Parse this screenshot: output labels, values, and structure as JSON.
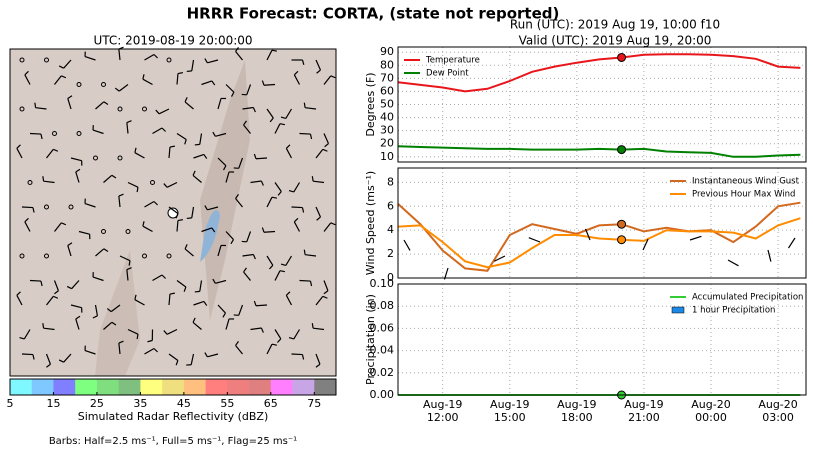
{
  "title": "HRRR Forecast: CORTA, (state not reported)",
  "map": {
    "title": "UTC: 2019-08-19 20:00:00",
    "colorbar": {
      "label": "Simulated Radar Reflectivity (dBZ)",
      "lim": [
        5,
        80
      ],
      "ticks": [
        5,
        15,
        25,
        35,
        45,
        55,
        65,
        75
      ],
      "colors": [
        "#7ff8ff",
        "#7fc8ff",
        "#7f7fff",
        "#7fff7f",
        "#7fdf7f",
        "#7fbf7f",
        "#ffff7f",
        "#efdf7f",
        "#ffbf7f",
        "#ff7f7f",
        "#ef7f7f",
        "#df7f7f",
        "#ff7fff",
        "#c8a6e6",
        "#808080"
      ]
    },
    "note": "Barbs: Half=2.5 ms⁻¹, Full=5 ms⁻¹, Flag=25 ms⁻¹"
  },
  "run": "Run (UTC): 2019 Aug 19, 10:00 f10",
  "valid": "Valid (UTC): 2019 Aug 19, 20:00",
  "chart_data": [
    {
      "type": "line",
      "ylabel": "Degrees (F)",
      "legend": "upper left",
      "grid": true,
      "highlight_x": "Aug-19 20:00",
      "x": [
        "Aug-19 10:00",
        "Aug-19 11:00",
        "Aug-19 12:00",
        "Aug-19 13:00",
        "Aug-19 14:00",
        "Aug-19 15:00",
        "Aug-19 16:00",
        "Aug-19 17:00",
        "Aug-19 18:00",
        "Aug-19 19:00",
        "Aug-19 20:00",
        "Aug-19 21:00",
        "Aug-19 22:00",
        "Aug-19 23:00",
        "Aug-20 00:00",
        "Aug-20 01:00",
        "Aug-20 02:00",
        "Aug-20 03:00",
        "Aug-20 04:00"
      ],
      "ylim": [
        6,
        94
      ],
      "yticks": [
        10,
        20,
        30,
        40,
        50,
        60,
        70,
        80,
        90
      ],
      "series": [
        {
          "name": "Temperature",
          "color": "#e8161b",
          "kind": "line",
          "values": [
            67,
            65,
            63,
            60,
            62,
            68,
            75,
            79,
            82,
            84.5,
            86,
            88,
            88.5,
            88.5,
            88,
            87,
            85,
            79,
            78
          ]
        },
        {
          "name": "Dew Point",
          "color": "#008000",
          "kind": "line",
          "values": [
            18,
            17.5,
            17,
            16.5,
            16,
            16,
            15.5,
            15.5,
            15.5,
            16,
            15.5,
            16,
            14,
            13.5,
            13,
            10,
            10,
            11,
            11.5
          ]
        }
      ]
    },
    {
      "type": "line",
      "ylabel": "Wind Speed (ms⁻¹)",
      "legend": "upper right",
      "grid": true,
      "highlight_x": "Aug-19 20:00",
      "x": [
        "Aug-19 10:00",
        "Aug-19 11:00",
        "Aug-19 12:00",
        "Aug-19 13:00",
        "Aug-19 14:00",
        "Aug-19 15:00",
        "Aug-19 16:00",
        "Aug-19 17:00",
        "Aug-19 18:00",
        "Aug-19 19:00",
        "Aug-19 20:00",
        "Aug-19 21:00",
        "Aug-19 22:00",
        "Aug-19 23:00",
        "Aug-20 00:00",
        "Aug-20 01:00",
        "Aug-20 02:00",
        "Aug-20 03:00",
        "Aug-20 04:00"
      ],
      "ylim": [
        0,
        9.2
      ],
      "yticks": [
        0,
        2,
        4,
        6,
        8
      ],
      "series": [
        {
          "name": "Instantaneous Wind Gust",
          "color": "#d2691e",
          "kind": "line",
          "values": [
            6.2,
            4.5,
            2.3,
            0.8,
            0.6,
            3.6,
            4.5,
            4.1,
            3.7,
            4.4,
            4.5,
            3.9,
            4.2,
            3.9,
            4.0,
            3.0,
            4.3,
            6.0,
            6.3
          ]
        },
        {
          "name": "Previous Hour Max Wind",
          "color": "#ff8c00",
          "kind": "line",
          "values": [
            4.3,
            4.4,
            3.0,
            1.4,
            0.9,
            1.3,
            2.5,
            3.6,
            3.6,
            3.3,
            3.2,
            3.1,
            4.0,
            3.9,
            3.9,
            3.8,
            3.3,
            4.4,
            5.0
          ]
        }
      ]
    },
    {
      "type": "bar",
      "ylabel": "Precipitation (in)",
      "legend": "upper right",
      "grid": true,
      "highlight_x": "Aug-19 20:00",
      "x": [
        "Aug-19 10:00",
        "Aug-19 11:00",
        "Aug-19 12:00",
        "Aug-19 13:00",
        "Aug-19 14:00",
        "Aug-19 15:00",
        "Aug-19 16:00",
        "Aug-19 17:00",
        "Aug-19 18:00",
        "Aug-19 19:00",
        "Aug-19 20:00",
        "Aug-19 21:00",
        "Aug-19 22:00",
        "Aug-19 23:00",
        "Aug-20 00:00",
        "Aug-20 01:00",
        "Aug-20 02:00",
        "Aug-20 03:00",
        "Aug-20 04:00"
      ],
      "ylim": [
        0,
        0.1
      ],
      "yticks": [
        {
          "value": 0,
          "label": "0.00"
        },
        {
          "value": 0.02,
          "label": "0.02"
        },
        {
          "value": 0.04,
          "label": "0.04"
        },
        {
          "value": 0.06,
          "label": "0.06"
        },
        {
          "value": 0.08,
          "label": "0.08"
        },
        {
          "value": 0.1,
          "label": "0.10"
        }
      ],
      "xlim": [
        "Aug-19 10:00",
        "Aug-20 04:15"
      ],
      "xticks": [
        "Aug-19 12:00",
        "Aug-19 15:00",
        "Aug-19 18:00",
        "Aug-19 21:00",
        "Aug-20 00:00",
        "Aug-20 03:00"
      ],
      "series": [
        {
          "name": "Accumulated Precipitation",
          "color": "#32cd32",
          "kind": "line",
          "values": [
            0,
            0,
            0,
            0,
            0,
            0,
            0,
            0,
            0,
            0,
            0,
            0,
            0,
            0,
            0,
            0,
            0,
            0,
            0
          ]
        },
        {
          "name": "1 hour Precipitation",
          "color": "#1e88e5",
          "kind": "bar",
          "values": [
            0,
            0,
            0,
            0,
            0,
            0,
            0,
            0,
            0,
            0,
            0,
            0,
            0,
            0,
            0,
            0,
            0,
            0,
            0
          ]
        }
      ]
    }
  ]
}
